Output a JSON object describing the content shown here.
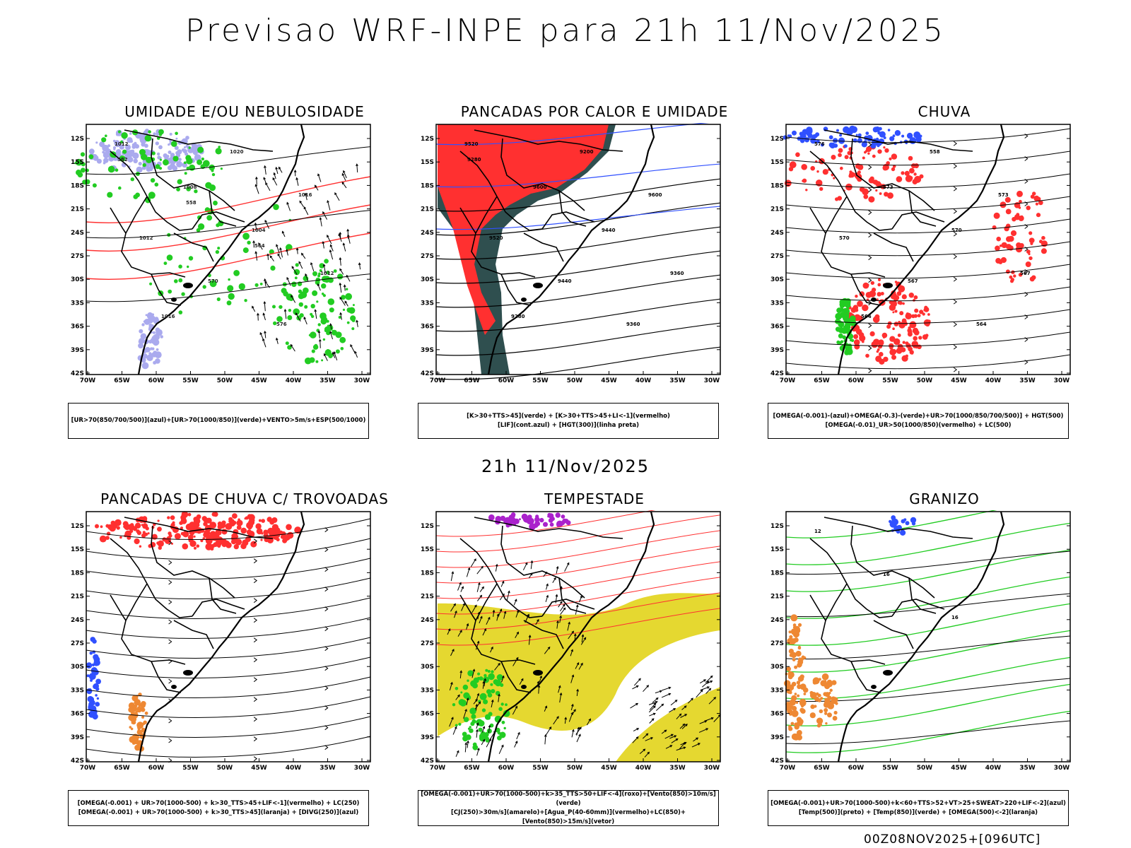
{
  "header": {
    "title": "Previsao WRF-INPE  para 21h 11/Nov/2025"
  },
  "middle_title": "21h 11/Nov/2025",
  "footer": "00Z08NOV2025+[096UTC]",
  "axes": {
    "lat_labels": [
      "12S",
      "15S",
      "18S",
      "21S",
      "24S",
      "27S",
      "30S",
      "33S",
      "36S",
      "39S",
      "42S"
    ],
    "lon_labels": [
      "70W",
      "65W",
      "60W",
      "55W",
      "50W",
      "45W",
      "40W",
      "35W",
      "30W"
    ]
  },
  "panels": [
    {
      "title": "UMIDADE E/OU NEBULOSIDADE",
      "legend": [
        "[UR>70(850/700/500)](azul)+[UR>70(1000/850)](verde)+VENTO>5m/s+ESP(500/1000)"
      ],
      "contour_labels": [
        "1012",
        "1008",
        "1004",
        "1012",
        "1016",
        "1020",
        "1016",
        "1012",
        "570",
        "576",
        "582",
        "558",
        "564"
      ]
    },
    {
      "title": "PANCADAS POR CALOR E UMIDADE",
      "legend": [
        "[K>30+TTS>45](verde) + [K>30+TTS>45+LI<-1](vermelho)",
        "[LIF](cont.azul) + [HGT(300)](linha preta)"
      ],
      "contour_labels": [
        "9520",
        "9600",
        "9440",
        "9360",
        "9280",
        "9200",
        "9600",
        "9520",
        "9440",
        "9360",
        "9280"
      ]
    },
    {
      "title": "CHUVA",
      "legend": [
        "[OMEGA(-0.001)-(azul)+OMEGA(-0.3)-(verde)+UR>70(1000/850/700/500)] + HGT(500)",
        "[OMEGA(-0.01)_UR>50(1000/850)(vermelho) + LC(500)"
      ],
      "contour_labels": [
        "576",
        "573",
        "570",
        "567",
        "564",
        "558",
        "573",
        "570",
        "567",
        "564"
      ]
    },
    {
      "title": "PANCADAS DE CHUVA C/ TROVOADAS",
      "legend": [
        "[OMEGA(-0.001) + UR>70(1000-500) + k>30_TTS>45+LIF<-1](vermelho) + LC(250)",
        "[OMEGA(-0.001) + UR>70(1000-500) + k>30_TTS>45](laranja) + [DIVG(250)](azul)"
      ],
      "contour_labels": []
    },
    {
      "title": "TEMPESTADE",
      "legend": [
        "[OMEGA(-0.001)+UR>70(1000-500)+k>35_TTS>50+LIF<-4](roxo)+[Vento(850)>10m/s](verde)",
        "[CJ(250)>30m/s](amarelo)+[Agua_P(40-60mm)](vermelho)+LC(850)+[Vento(850)>15m/s](vetor)"
      ],
      "contour_labels": []
    },
    {
      "title": "GRANIZO",
      "legend": [
        "[OMEGA(-0.001)+UR>70(1000-500)+k<60+TTS>52+VT>25+SWEAT>220+LIF<-2](azul)",
        "[Temp(500)](preto) + [Temp(850)](verde) + [OMEGA(500)<-2](laranja)"
      ],
      "contour_labels": [
        "12",
        "16",
        "16"
      ]
    }
  ],
  "colors": {
    "red": "#ff3030",
    "blue": "#3050ff",
    "green": "#22cc22",
    "lightblue": "#aaaaee",
    "darkteal": "#2f4f4f",
    "yellow": "#e5d830",
    "orange": "#ee8833",
    "purple": "#aa22cc"
  }
}
